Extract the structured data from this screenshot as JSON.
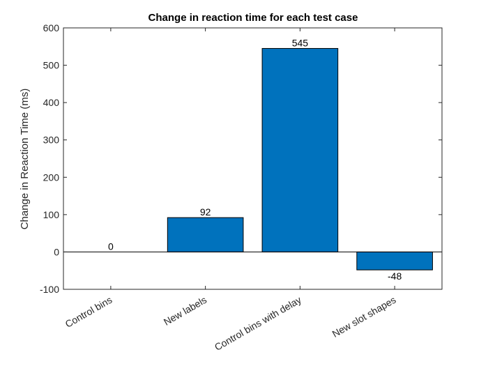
{
  "chart_data": {
    "type": "bar",
    "title": "Change in reaction time for each test case",
    "xlabel": "",
    "ylabel": "Change in Reaction Time (ms)",
    "categories": [
      "Control bins",
      "New labels",
      "Control bins with delay",
      "New slot shapes"
    ],
    "values": [
      0,
      92,
      545,
      -48
    ],
    "data_labels": [
      "0",
      "92",
      "545",
      "-48"
    ],
    "ylim": [
      -100,
      600
    ],
    "yticks": [
      -100,
      0,
      100,
      200,
      300,
      400,
      500,
      600
    ],
    "ytick_labels": [
      "-100",
      "0",
      "100",
      "200",
      "300",
      "400",
      "500",
      "600"
    ],
    "bar_color": "#0072BD",
    "grid": false,
    "legend": "none"
  }
}
